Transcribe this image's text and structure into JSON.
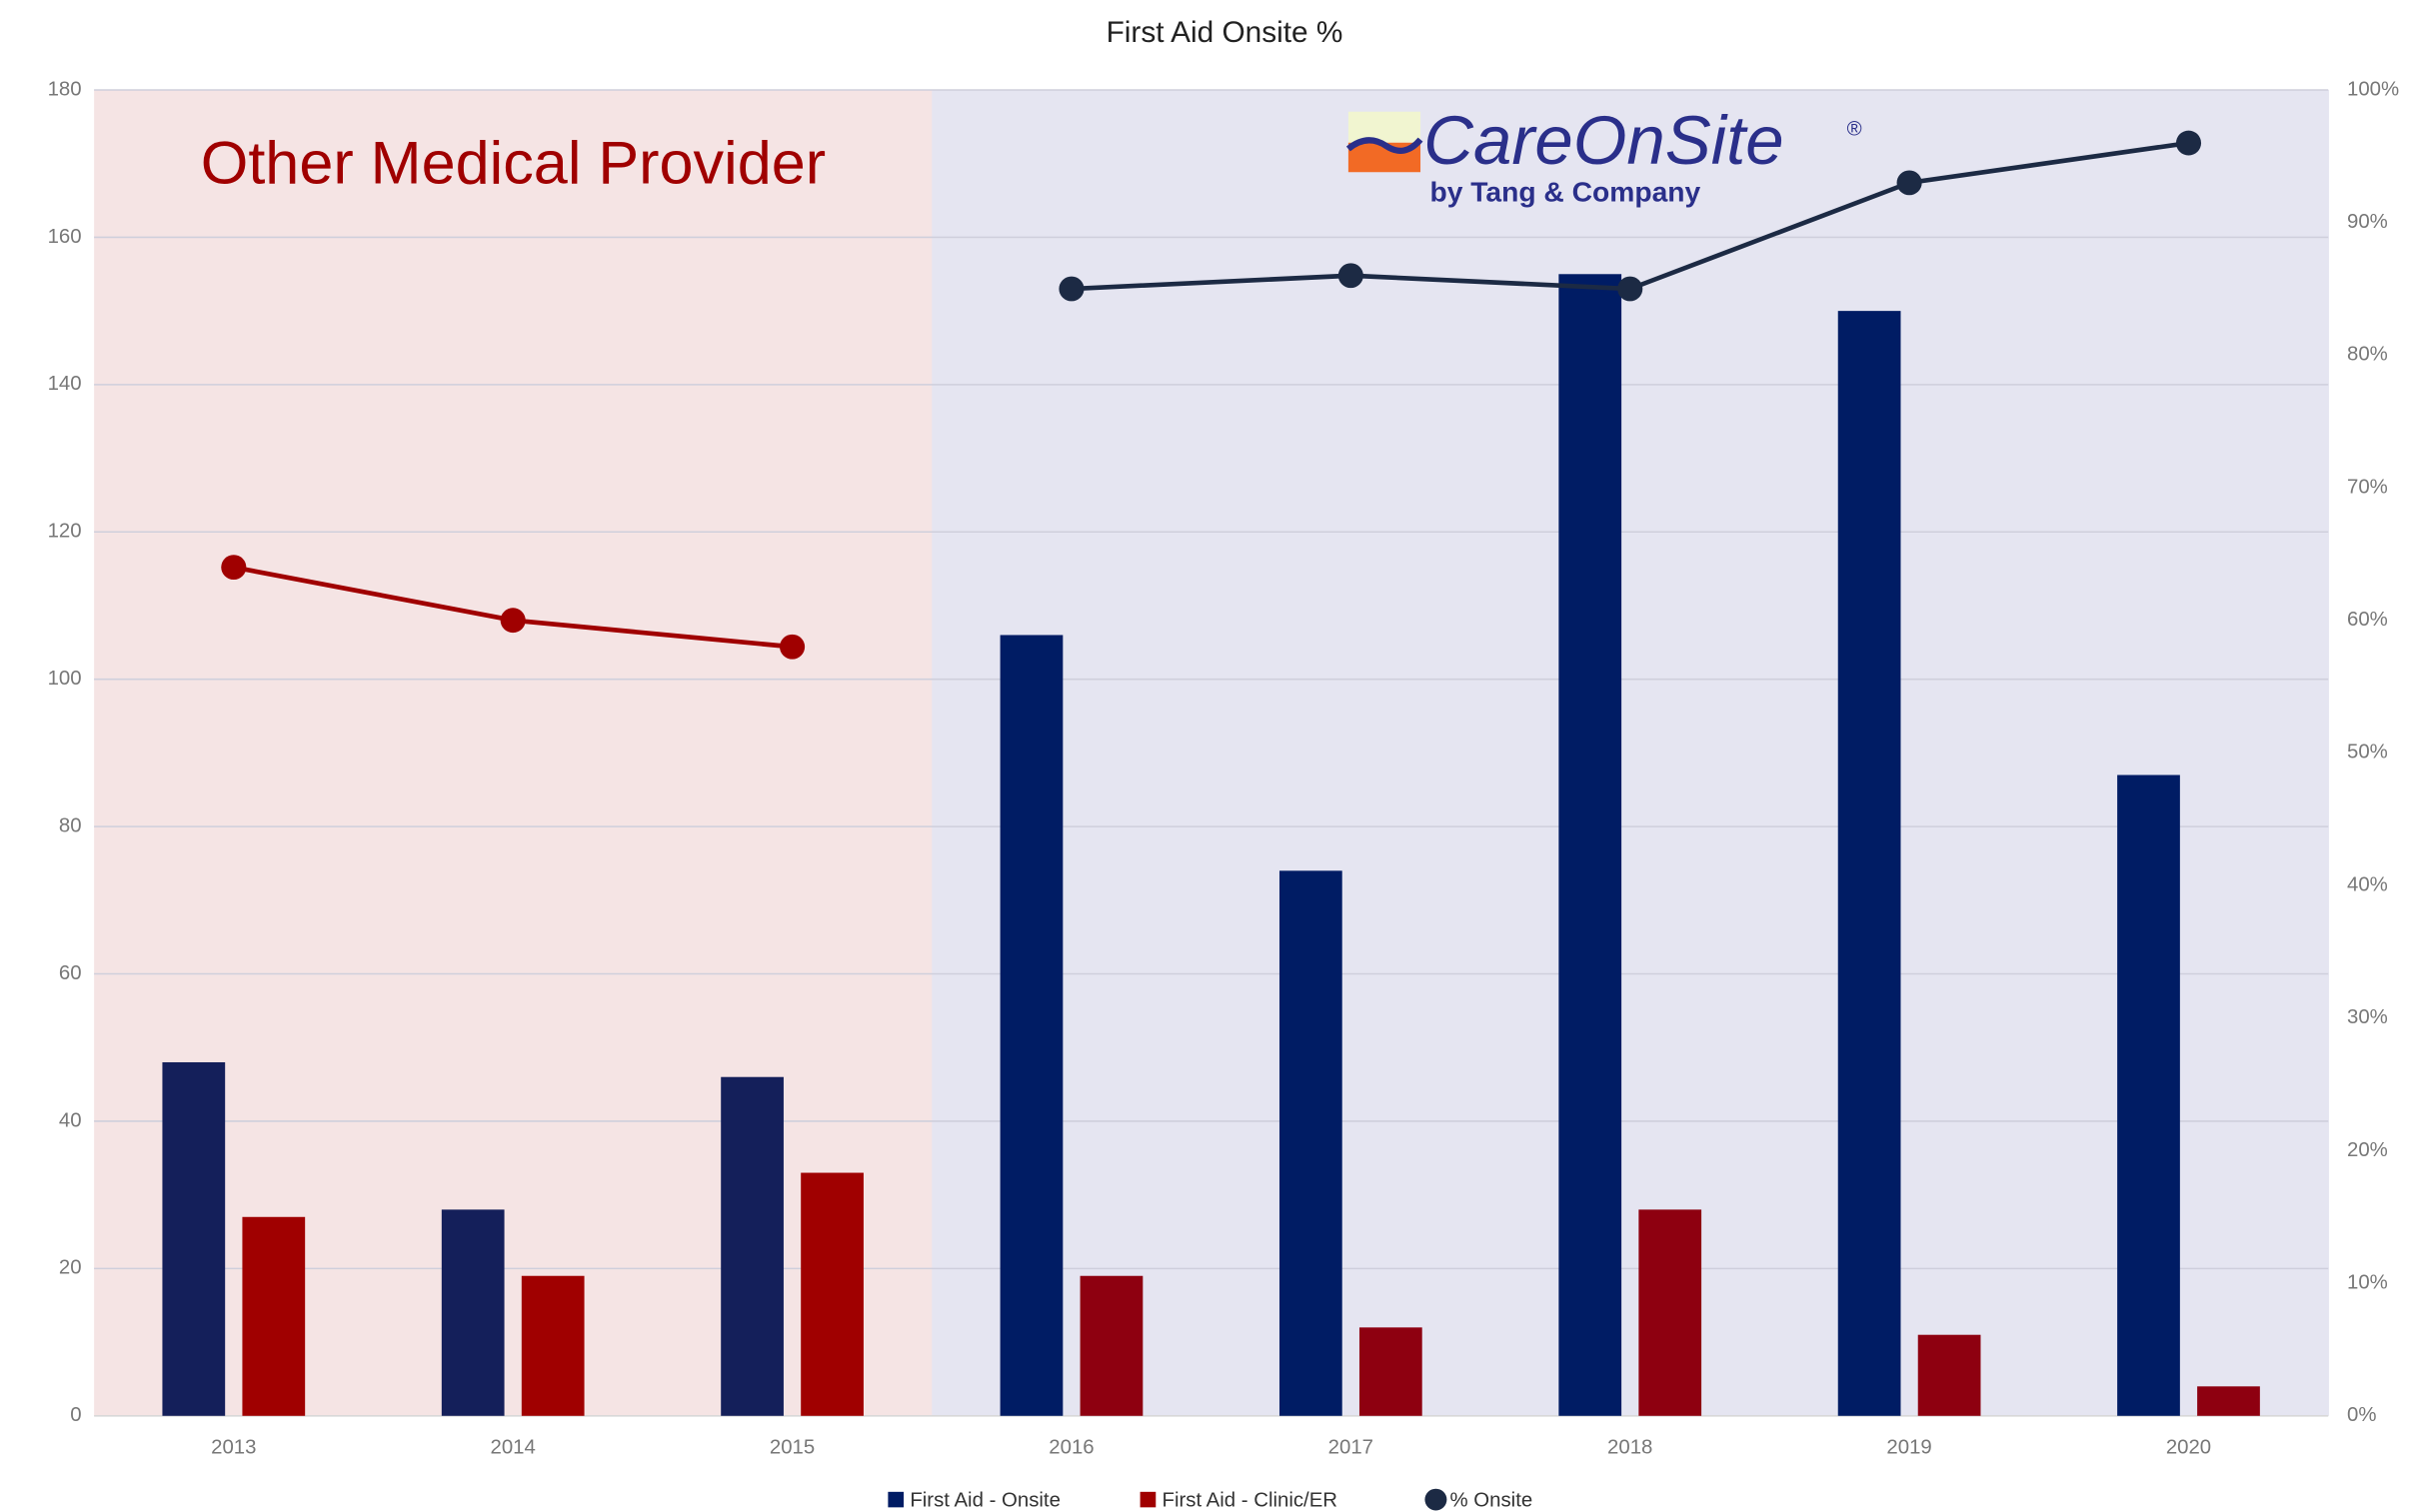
{
  "chart_data": {
    "type": "bar",
    "title": "First Aid Onsite %",
    "categories": [
      "2013",
      "2014",
      "2015",
      "2016",
      "2017",
      "2018",
      "2019",
      "2020"
    ],
    "background_colors": [
      "#f5e4e4",
      "#f5e4e4",
      "#f5e4e4",
      "#e5e5f1",
      "#e5e5f1",
      "#e5e5f1",
      "#e5e5f1",
      "#e5e5f1"
    ],
    "series": [
      {
        "name": "First Aid - Onsite",
        "type": "bar",
        "color": "#001c64",
        "point_colors": [
          "#141f5a",
          "#141f5a",
          "#141f5a",
          "#001c64",
          "#001c64",
          "#001c64",
          "#001c64",
          "#001c64"
        ],
        "values": [
          48,
          28,
          46,
          106,
          74,
          155,
          150,
          87
        ]
      },
      {
        "name": "First Aid - Clinic/ER",
        "type": "bar",
        "color": "#a00000",
        "point_colors": [
          "#a00000",
          "#a00000",
          "#a00000",
          "#8e0010",
          "#8e0010",
          "#8e0010",
          "#8e0010",
          "#8e0010"
        ],
        "values": [
          27,
          19,
          33,
          19,
          12,
          28,
          11,
          4
        ]
      },
      {
        "name": "% Onsite",
        "type": "line",
        "axis": "y2",
        "color": "#1c2a44",
        "point_colors": [
          "#a00000",
          "#a00000",
          "#a00000",
          "#1c2a44",
          "#1c2a44",
          "#1c2a44",
          "#1c2a44",
          "#1c2a44"
        ],
        "values": [
          64,
          60,
          58,
          85,
          86,
          85,
          93,
          96
        ]
      }
    ],
    "ylim": [
      0,
      180
    ],
    "yticks": [
      0,
      20,
      40,
      60,
      80,
      100,
      120,
      140,
      160,
      180
    ],
    "y2lim": [
      0,
      100
    ],
    "y2ticks": [
      {
        "value": 0,
        "label": "0%"
      },
      {
        "value": 10,
        "label": "10%"
      },
      {
        "value": 20,
        "label": "20%"
      },
      {
        "value": 30,
        "label": "30%"
      },
      {
        "value": 40,
        "label": "40%"
      },
      {
        "value": 50,
        "label": "50%"
      },
      {
        "value": 60,
        "label": "60%"
      },
      {
        "value": 70,
        "label": "70%"
      },
      {
        "value": 80,
        "label": "80%"
      },
      {
        "value": 90,
        "label": "90%"
      },
      {
        "value": 100,
        "label": "100%"
      }
    ],
    "grid": true,
    "legend": "bottom",
    "annotations": {
      "region_left": "Other Medical Provider",
      "logo": "CareOnSite",
      "logo_mark": "®",
      "logo_sub": "by Tang & Company"
    }
  }
}
